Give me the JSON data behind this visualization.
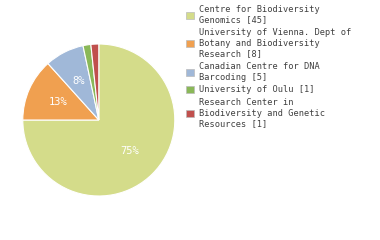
{
  "labels": [
    "Centre for Biodiversity\nGenomics [45]",
    "University of Vienna. Dept of\nBotany and Biodiversity\nResearch [8]",
    "Canadian Centre for DNA\nBarcoding [5]",
    "University of Oulu [1]",
    "Research Center in\nBiodiversity and Genetic\nResources [1]"
  ],
  "values": [
    45,
    8,
    5,
    1,
    1
  ],
  "colors": [
    "#d4dc8a",
    "#f0a050",
    "#a0b8d8",
    "#8ab858",
    "#c0504d"
  ],
  "autopct_labels": [
    "75%",
    "13%",
    "8%",
    "1%",
    "1%"
  ],
  "background_color": "#ffffff",
  "text_color": "#404040",
  "pie_fontsize": 7.5,
  "legend_fontsize": 6.2
}
